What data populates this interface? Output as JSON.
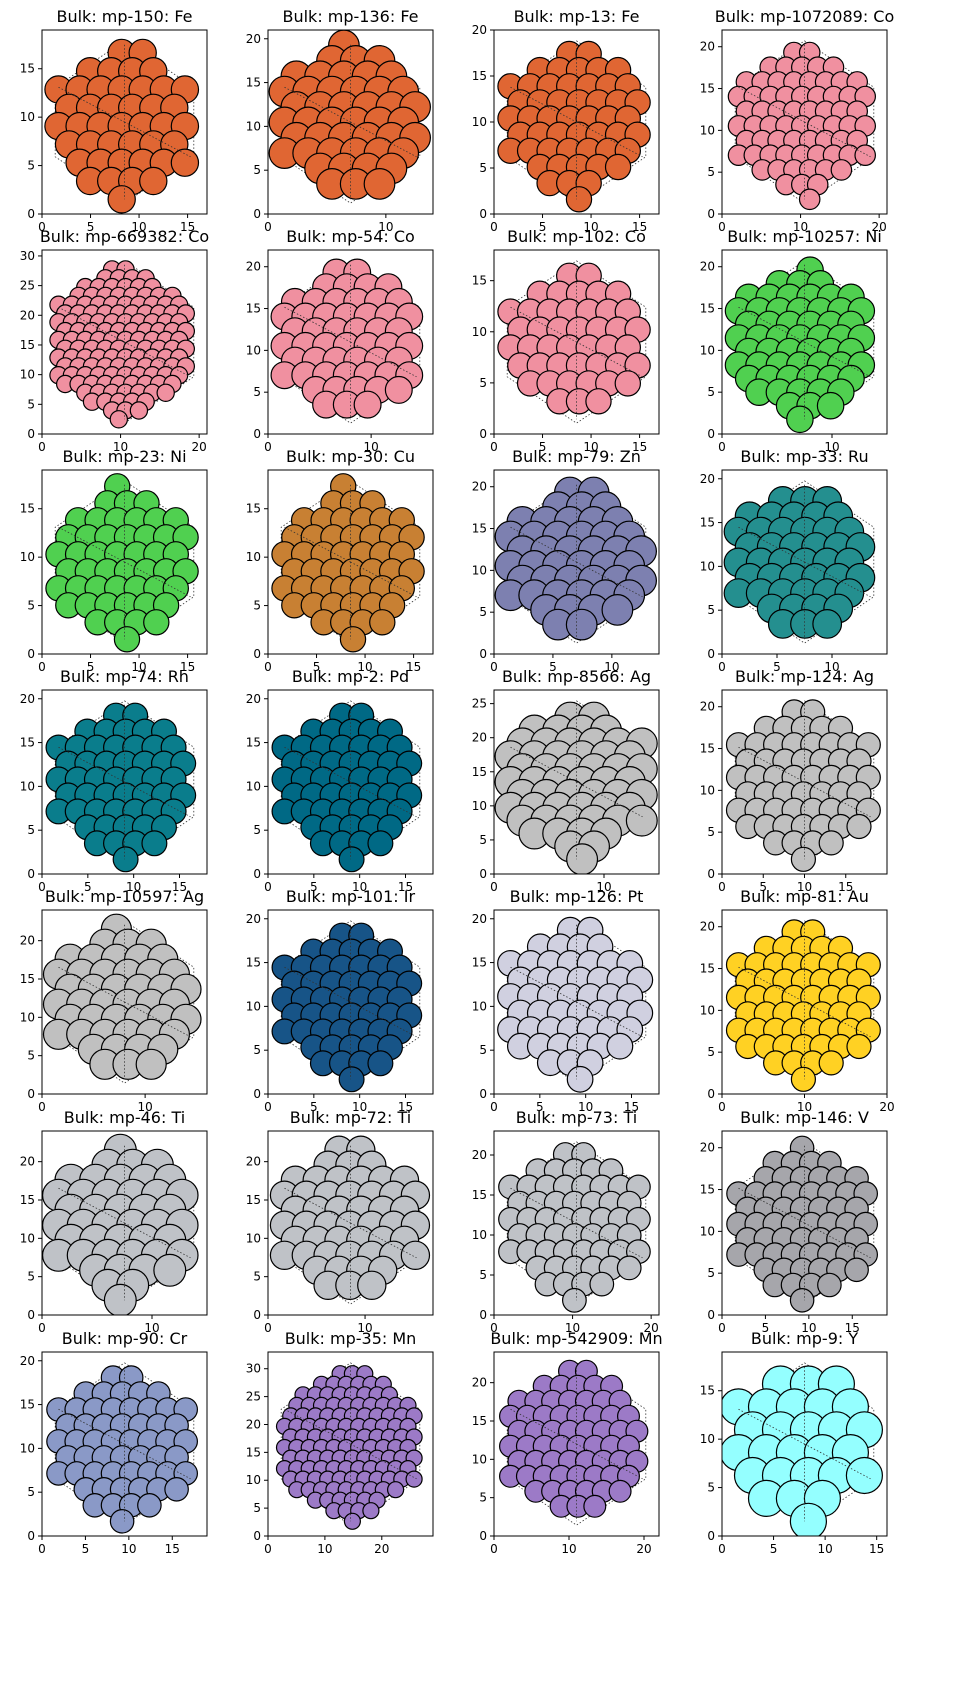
{
  "figure": {
    "background": "#ffffff",
    "columns": 4,
    "rows": 7
  },
  "chart_data": [
    {
      "type": "scatter",
      "title": "Bulk: mp-150: Fe",
      "element": "Fe",
      "color": "#E06633",
      "xlim": [
        0,
        17
      ],
      "ylim": [
        0,
        19
      ],
      "xticks": [
        0,
        5,
        10,
        15
      ],
      "yticks": [
        0,
        5,
        10,
        15
      ],
      "radius": 1.4
    },
    {
      "type": "scatter",
      "title": "Bulk: mp-136: Fe",
      "element": "Fe",
      "color": "#E06633",
      "xlim": [
        0,
        14
      ],
      "ylim": [
        0,
        21
      ],
      "xticks": [
        0,
        10
      ],
      "yticks": [
        0,
        5,
        10,
        15,
        20
      ],
      "radius": 1.3
    },
    {
      "type": "scatter",
      "title": "Bulk: mp-13: Fe",
      "element": "Fe",
      "color": "#E06633",
      "xlim": [
        0,
        17
      ],
      "ylim": [
        0,
        20
      ],
      "xticks": [
        0,
        5,
        10,
        15
      ],
      "yticks": [
        0,
        5,
        10,
        15,
        20
      ],
      "radius": 1.3
    },
    {
      "type": "scatter",
      "title": "Bulk: mp-1072089: Co",
      "element": "Co",
      "color": "#F090A0",
      "xlim": [
        0,
        21
      ],
      "ylim": [
        0,
        22
      ],
      "xticks": [
        0,
        10,
        20
      ],
      "yticks": [
        0,
        5,
        10,
        15,
        20
      ],
      "radius": 1.3
    },
    {
      "type": "scatter",
      "title": "Bulk: mp-669382: Co",
      "element": "Co",
      "color": "#F090A0",
      "xlim": [
        0,
        21
      ],
      "ylim": [
        0,
        31
      ],
      "xticks": [
        0,
        10,
        20
      ],
      "yticks": [
        0,
        5,
        10,
        15,
        20,
        25,
        30
      ],
      "radius": 1.1
    },
    {
      "type": "scatter",
      "title": "Bulk: mp-54: Co",
      "element": "Co",
      "color": "#F090A0",
      "xlim": [
        0,
        16
      ],
      "ylim": [
        0,
        22
      ],
      "xticks": [
        0,
        10
      ],
      "yticks": [
        0,
        5,
        10,
        15,
        20
      ],
      "radius": 1.3
    },
    {
      "type": "scatter",
      "title": "Bulk: mp-102: Co",
      "element": "Co",
      "color": "#F090A0",
      "xlim": [
        0,
        17
      ],
      "ylim": [
        0,
        18
      ],
      "xticks": [
        0,
        5,
        10,
        15
      ],
      "yticks": [
        0,
        5,
        10,
        15
      ],
      "radius": 1.3
    },
    {
      "type": "scatter",
      "title": "Bulk: mp-10257: Ni",
      "element": "Ni",
      "color": "#50D050",
      "xlim": [
        0,
        15
      ],
      "ylim": [
        0,
        22
      ],
      "xticks": [
        0,
        10
      ],
      "yticks": [
        0,
        5,
        10,
        15,
        20
      ],
      "radius": 1.2
    },
    {
      "type": "scatter",
      "title": "Bulk: mp-23: Ni",
      "element": "Ni",
      "color": "#50D050",
      "xlim": [
        0,
        17
      ],
      "ylim": [
        0,
        19
      ],
      "xticks": [
        0,
        5,
        10,
        15
      ],
      "yticks": [
        0,
        5,
        10,
        15
      ],
      "radius": 1.3
    },
    {
      "type": "scatter",
      "title": "Bulk: mp-30: Cu",
      "element": "Cu",
      "color": "#C88033",
      "xlim": [
        0,
        17
      ],
      "ylim": [
        0,
        19
      ],
      "xticks": [
        0,
        5,
        10,
        15
      ],
      "yticks": [
        0,
        5,
        10,
        15
      ],
      "radius": 1.3
    },
    {
      "type": "scatter",
      "title": "Bulk: mp-79: Zn",
      "element": "Zn",
      "color": "#7D80B0",
      "xlim": [
        0,
        14
      ],
      "ylim": [
        0,
        22
      ],
      "xticks": [
        0,
        5,
        10
      ],
      "yticks": [
        0,
        5,
        10,
        15,
        20
      ],
      "radius": 1.3
    },
    {
      "type": "scatter",
      "title": "Bulk: mp-33: Ru",
      "element": "Ru",
      "color": "#248F8F",
      "xlim": [
        0,
        15
      ],
      "ylim": [
        0,
        21
      ],
      "xticks": [
        0,
        5,
        10
      ],
      "yticks": [
        0,
        5,
        10,
        15,
        20
      ],
      "radius": 1.3
    },
    {
      "type": "scatter",
      "title": "Bulk: mp-74: Rh",
      "element": "Rh",
      "color": "#0A7D8C",
      "xlim": [
        0,
        18
      ],
      "ylim": [
        0,
        21
      ],
      "xticks": [
        0,
        5,
        10,
        15
      ],
      "yticks": [
        0,
        5,
        10,
        15,
        20
      ],
      "radius": 1.35
    },
    {
      "type": "scatter",
      "title": "Bulk: mp-2: Pd",
      "element": "Pd",
      "color": "#006985",
      "xlim": [
        0,
        18
      ],
      "ylim": [
        0,
        21
      ],
      "xticks": [
        0,
        5,
        10,
        15
      ],
      "yticks": [
        0,
        5,
        10,
        15,
        20
      ],
      "radius": 1.35
    },
    {
      "type": "scatter",
      "title": "Bulk: mp-8566: Ag",
      "element": "Ag",
      "color": "#C0C0C0",
      "xlim": [
        0,
        15
      ],
      "ylim": [
        0,
        27
      ],
      "xticks": [
        0,
        10
      ],
      "yticks": [
        0,
        5,
        10,
        15,
        20,
        25
      ],
      "radius": 1.4
    },
    {
      "type": "scatter",
      "title": "Bulk: mp-124: Ag",
      "element": "Ag",
      "color": "#C0C0C0",
      "xlim": [
        0,
        20
      ],
      "ylim": [
        0,
        22
      ],
      "xticks": [
        0,
        5,
        10,
        15
      ],
      "yticks": [
        0,
        5,
        10,
        15,
        20
      ],
      "radius": 1.45
    },
    {
      "type": "scatter",
      "title": "Bulk: mp-10597: Ag",
      "element": "Ag",
      "color": "#C0C0C0",
      "xlim": [
        0,
        16
      ],
      "ylim": [
        0,
        24
      ],
      "xticks": [
        0,
        10
      ],
      "yticks": [
        0,
        5,
        10,
        15,
        20
      ],
      "radius": 1.45
    },
    {
      "type": "scatter",
      "title": "Bulk: mp-101: Ir",
      "element": "Ir",
      "color": "#175487",
      "xlim": [
        0,
        18
      ],
      "ylim": [
        0,
        21
      ],
      "xticks": [
        0,
        5,
        10,
        15
      ],
      "yticks": [
        0,
        5,
        10,
        15,
        20
      ],
      "radius": 1.35
    },
    {
      "type": "scatter",
      "title": "Bulk: mp-126: Pt",
      "element": "Pt",
      "color": "#D0D0E0",
      "xlim": [
        0,
        18
      ],
      "ylim": [
        0,
        21
      ],
      "xticks": [
        0,
        5,
        10,
        15
      ],
      "yticks": [
        0,
        5,
        10,
        15,
        20
      ],
      "radius": 1.4
    },
    {
      "type": "scatter",
      "title": "Bulk: mp-81: Au",
      "element": "Au",
      "color": "#FFD123",
      "xlim": [
        0,
        20
      ],
      "ylim": [
        0,
        22
      ],
      "xticks": [
        0,
        10,
        20
      ],
      "yticks": [
        0,
        5,
        10,
        15,
        20
      ],
      "radius": 1.45
    },
    {
      "type": "scatter",
      "title": "Bulk: mp-46: Ti",
      "element": "Ti",
      "color": "#BFC2C7",
      "xlim": [
        0,
        15
      ],
      "ylim": [
        0,
        24
      ],
      "xticks": [
        0,
        10
      ],
      "yticks": [
        0,
        5,
        10,
        15,
        20
      ],
      "radius": 1.45
    },
    {
      "type": "scatter",
      "title": "Bulk: mp-72: Ti",
      "element": "Ti",
      "color": "#BFC2C7",
      "xlim": [
        0,
        17
      ],
      "ylim": [
        0,
        24
      ],
      "xticks": [
        0,
        10
      ],
      "yticks": [
        0,
        5,
        10,
        15,
        20
      ],
      "radius": 1.45
    },
    {
      "type": "scatter",
      "title": "Bulk: mp-73: Ti",
      "element": "Ti",
      "color": "#BFC2C7",
      "xlim": [
        0,
        21
      ],
      "ylim": [
        0,
        23
      ],
      "xticks": [
        0,
        10,
        20
      ],
      "yticks": [
        0,
        5,
        10,
        15,
        20
      ],
      "radius": 1.5
    },
    {
      "type": "scatter",
      "title": "Bulk: mp-146: V",
      "element": "V",
      "color": "#A6A6AB",
      "xlim": [
        0,
        19
      ],
      "ylim": [
        0,
        22
      ],
      "xticks": [
        0,
        5,
        10,
        15
      ],
      "yticks": [
        0,
        5,
        10,
        15,
        20
      ],
      "radius": 1.35
    },
    {
      "type": "scatter",
      "title": "Bulk: mp-90: Cr",
      "element": "Cr",
      "color": "#8A99C7",
      "xlim": [
        0,
        19
      ],
      "ylim": [
        0,
        21
      ],
      "xticks": [
        0,
        5,
        10,
        15
      ],
      "yticks": [
        0,
        5,
        10,
        15,
        20
      ],
      "radius": 1.35
    },
    {
      "type": "scatter",
      "title": "Bulk: mp-35: Mn",
      "element": "Mn",
      "color": "#9C7AC7",
      "xlim": [
        0,
        29
      ],
      "ylim": [
        0,
        33
      ],
      "xticks": [
        0,
        10,
        20
      ],
      "yticks": [
        0,
        5,
        10,
        15,
        20,
        25,
        30
      ],
      "radius": 1.4
    },
    {
      "type": "scatter",
      "title": "Bulk: mp-542909: Mn",
      "element": "Mn",
      "color": "#9C7AC7",
      "xlim": [
        0,
        22
      ],
      "ylim": [
        0,
        24
      ],
      "xticks": [
        0,
        10,
        20
      ],
      "yticks": [
        0,
        5,
        10,
        15,
        20
      ],
      "radius": 1.45
    },
    {
      "type": "scatter",
      "title": "Bulk: mp-9: Y",
      "element": "Y",
      "color": "#94FFFF",
      "xlim": [
        0,
        16
      ],
      "ylim": [
        0,
        19
      ],
      "xticks": [
        0,
        5,
        10,
        15
      ],
      "yticks": [
        0,
        5,
        10,
        15
      ],
      "radius": 1.75
    }
  ]
}
